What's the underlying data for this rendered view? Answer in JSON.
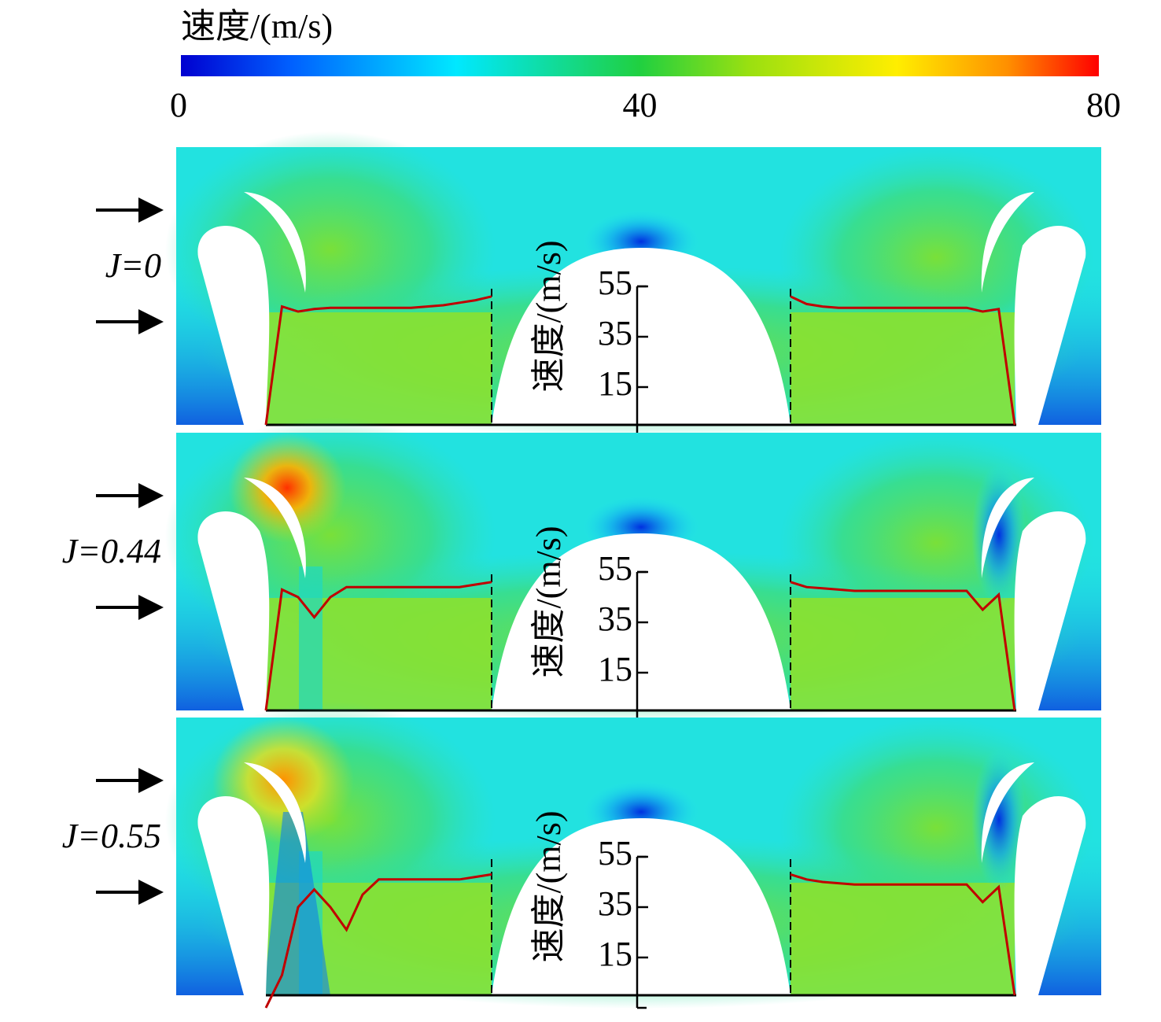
{
  "chart_data": {
    "type": "contour",
    "colorbar_title": "速度/(m/s)",
    "clim": [
      0,
      80
    ],
    "cticks": [
      0,
      40,
      80
    ],
    "ylabel": "速度/(m/s)",
    "ylim": [
      -5,
      55
    ],
    "yticks": [
      15,
      35,
      55
    ],
    "line_color": "#c00000",
    "panels": [
      {
        "label": "J=0",
        "left": [
          0,
          47,
          45,
          46,
          46.5,
          46.5,
          46.5,
          46.5,
          46.5,
          46.5,
          47,
          47.5,
          48.5,
          49.5,
          51
        ],
        "right": [
          51,
          48,
          47,
          46.5,
          46.5,
          46.5,
          46.5,
          46.5,
          46.5,
          46.5,
          46.5,
          46.5,
          45,
          46,
          0
        ]
      },
      {
        "label": "J=0.44",
        "left": [
          0,
          48,
          45,
          37,
          45,
          49,
          49,
          49,
          49,
          49,
          49,
          49,
          49,
          50,
          51
        ],
        "right": [
          51,
          49,
          48.5,
          48,
          47.5,
          47.5,
          47.5,
          47.5,
          47.5,
          47.5,
          47.5,
          47.5,
          40,
          46,
          0
        ]
      },
      {
        "label": "J=0.55",
        "left": [
          -5,
          8,
          35,
          42,
          35,
          26,
          40,
          46,
          46,
          46,
          46,
          46,
          46,
          47,
          48
        ],
        "right": [
          48,
          46,
          45,
          44.5,
          44,
          44,
          44,
          44,
          44,
          44,
          44,
          44,
          37,
          43,
          0
        ]
      }
    ]
  }
}
